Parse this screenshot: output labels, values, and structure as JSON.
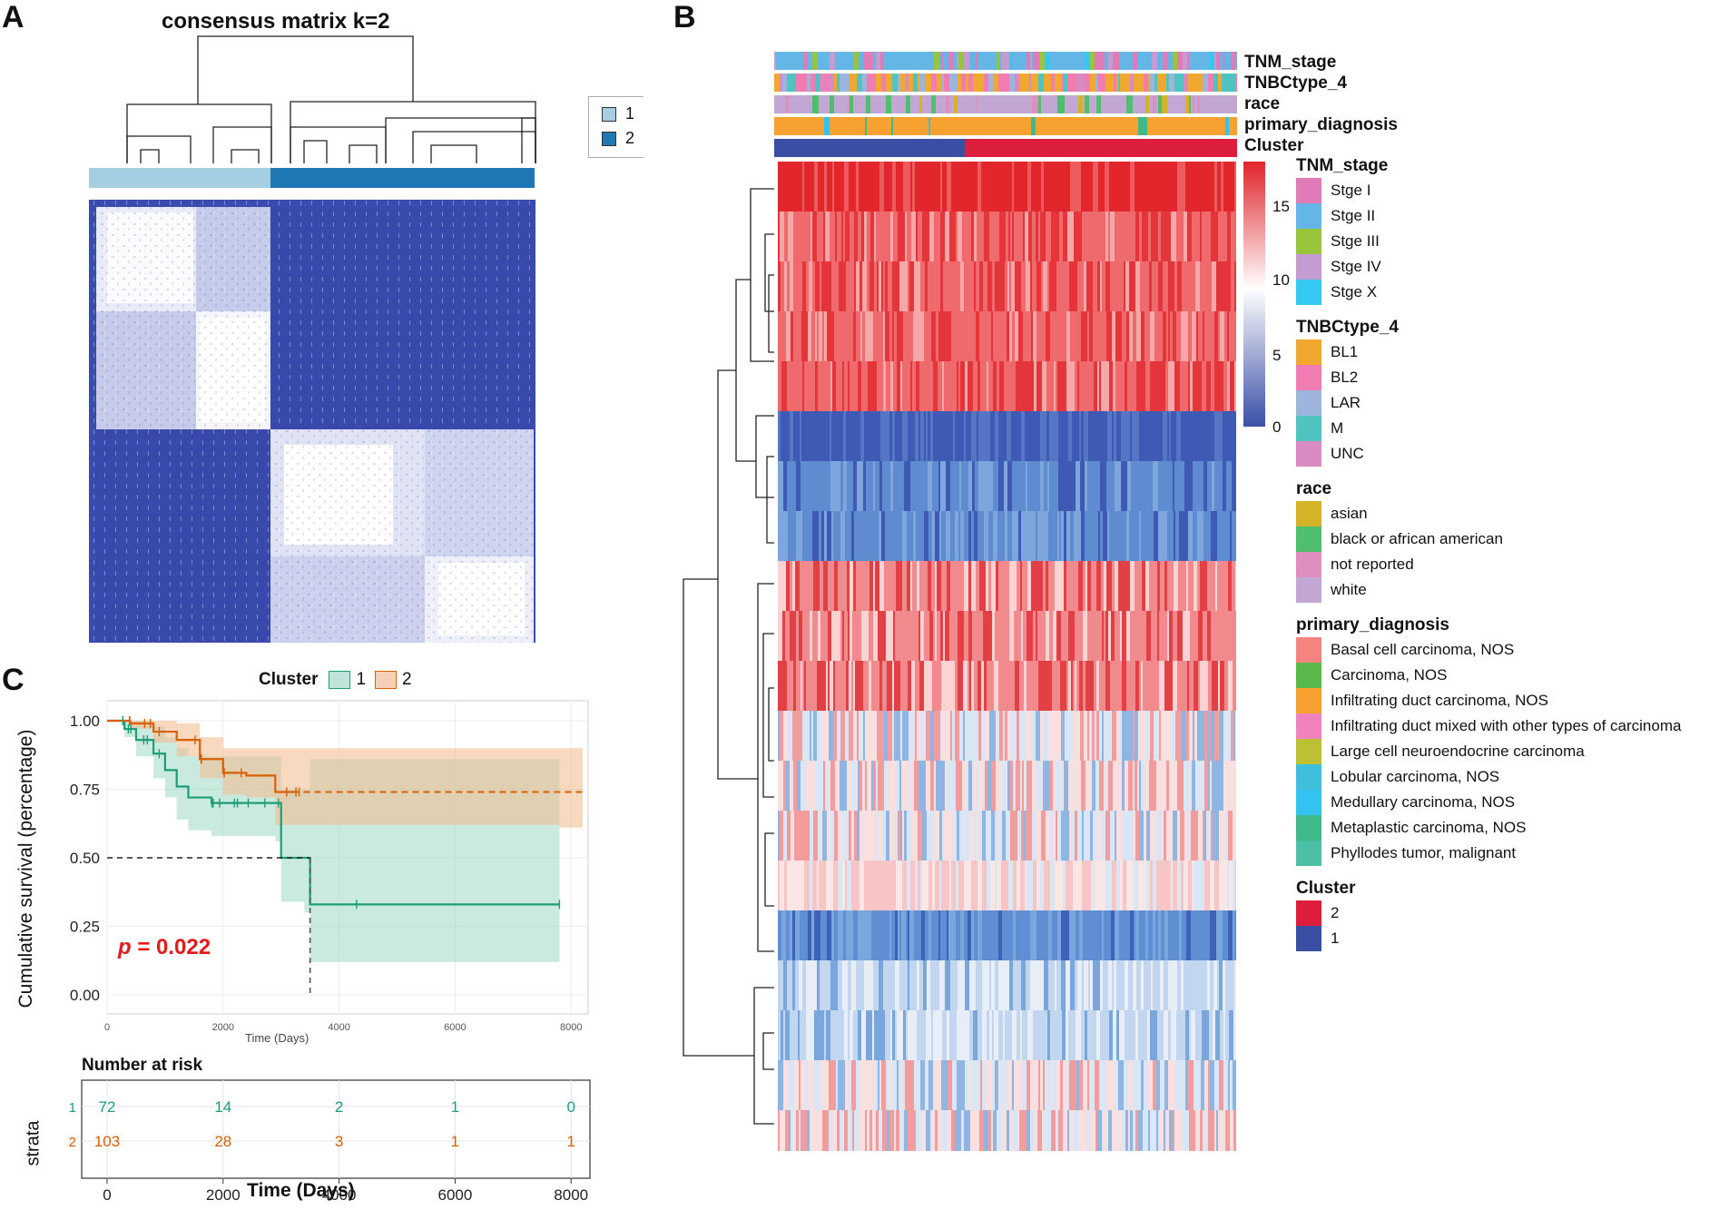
{
  "panels": {
    "a": {
      "letter": "A",
      "title": "consensus matrix k=2",
      "legend": [
        {
          "label": "1",
          "color": "#a6cee3"
        },
        {
          "label": "2",
          "color": "#1f78b4"
        }
      ]
    },
    "b": {
      "letter": "B",
      "annotation_rows": [
        "TNM_stage",
        "TNBCtype_4",
        "race",
        "primary_diagnosis",
        "Cluster"
      ],
      "color_scale": {
        "ticks": [
          "15",
          "10",
          "5",
          "0"
        ],
        "low": "#3a4fa6",
        "mid": "#ffffff",
        "high": "#e0242a"
      },
      "legends": [
        {
          "title": "TNM_stage",
          "items": [
            {
              "label": "Stge I",
              "color": "#e07bb8"
            },
            {
              "label": "Stge II",
              "color": "#63b6e6"
            },
            {
              "label": "Stge III",
              "color": "#98c53c"
            },
            {
              "label": "Stge IV",
              "color": "#c49cd1"
            },
            {
              "label": "Stge X",
              "color": "#35c8f0"
            }
          ]
        },
        {
          "title": "TNBCtype_4",
          "items": [
            {
              "label": "BL1",
              "color": "#f0a92e"
            },
            {
              "label": "BL2",
              "color": "#f17cb2"
            },
            {
              "label": "LAR",
              "color": "#9db4dd"
            },
            {
              "label": "M",
              "color": "#4ec3bf"
            },
            {
              "label": "UNC",
              "color": "#d98ac0"
            }
          ]
        },
        {
          "title": "race",
          "items": [
            {
              "label": "asian",
              "color": "#d4b328"
            },
            {
              "label": "black or african american",
              "color": "#4fbf6e"
            },
            {
              "label": "not reported",
              "color": "#df8fbf"
            },
            {
              "label": "white",
              "color": "#c2a6d4"
            }
          ]
        },
        {
          "title": "primary_diagnosis",
          "items": [
            {
              "label": "Basal cell carcinoma, NOS",
              "color": "#f48480"
            },
            {
              "label": "Carcinoma, NOS",
              "color": "#58b94a"
            },
            {
              "label": "Infiltrating duct carcinoma, NOS",
              "color": "#f7a131"
            },
            {
              "label": "Infiltrating duct mixed with other types of carcinoma",
              "color": "#f082bd"
            },
            {
              "label": "Large cell neuroendocrine carcinoma",
              "color": "#bcc034"
            },
            {
              "label": "Lobular carcinoma, NOS",
              "color": "#3fbfdc"
            },
            {
              "label": "Medullary carcinoma, NOS",
              "color": "#34c3f0"
            },
            {
              "label": "Metaplastic carcinoma, NOS",
              "color": "#3fb989"
            },
            {
              "label": "Phyllodes tumor, malignant",
              "color": "#4dbfa7"
            }
          ]
        },
        {
          "title": "Cluster",
          "items": [
            {
              "label": "2",
              "color": "#dc1e3c"
            },
            {
              "label": "1",
              "color": "#3a4ea4"
            }
          ]
        }
      ]
    },
    "c": {
      "letter": "C",
      "legend_title": "Cluster",
      "legend_items": [
        "1",
        "2"
      ],
      "p_value_prefix": "p",
      "p_value_text": "= 0.022",
      "risk_title": "Number at risk",
      "strata_label": "strata"
    }
  },
  "chart_data": [
    {
      "type": "line",
      "title": "",
      "xlabel": "Time (Days)",
      "ylabel": "Cumulative survival (percentage)",
      "xlim": [
        0,
        8000
      ],
      "ylim": [
        0,
        1
      ],
      "x_ticks": [
        "0",
        "2000",
        "4000",
        "6000",
        "8000"
      ],
      "y_ticks": [
        "0.00",
        "0.25",
        "0.50",
        "0.75",
        "1.00"
      ],
      "series": [
        {
          "name": "1",
          "color": "#1b9e77",
          "x": [
            0,
            300,
            500,
            800,
            1000,
            1200,
            1400,
            1800,
            2000,
            2400,
            2900,
            3000,
            3400,
            3500,
            7800
          ],
          "y": [
            1.0,
            0.97,
            0.93,
            0.88,
            0.82,
            0.76,
            0.72,
            0.7,
            0.7,
            0.7,
            0.7,
            0.5,
            0.5,
            0.33,
            0.33
          ],
          "ci_upper": [
            1.0,
            1.0,
            1.0,
            0.98,
            0.94,
            0.9,
            0.87,
            0.87,
            0.87,
            0.87,
            0.87,
            0.75,
            0.75,
            0.86,
            0.86
          ],
          "ci_lower": [
            1.0,
            0.94,
            0.87,
            0.79,
            0.72,
            0.64,
            0.6,
            0.58,
            0.58,
            0.58,
            0.56,
            0.34,
            0.3,
            0.12,
            0.12
          ]
        },
        {
          "name": "2",
          "color": "#d95f02",
          "x": [
            0,
            400,
            800,
            1200,
            1600,
            2000,
            2400,
            2900,
            3200,
            7800,
            8200
          ],
          "y": [
            1.0,
            0.99,
            0.96,
            0.93,
            0.86,
            0.81,
            0.8,
            0.74,
            0.74,
            0.74,
            0.74
          ],
          "ci_upper": [
            1.0,
            1.0,
            1.0,
            0.99,
            0.94,
            0.9,
            0.9,
            0.9,
            0.9,
            0.9,
            0.9
          ],
          "ci_lower": [
            1.0,
            0.97,
            0.92,
            0.87,
            0.79,
            0.73,
            0.72,
            0.62,
            0.62,
            0.61,
            0.61
          ]
        }
      ],
      "median_lines": [
        {
          "y": 0.5,
          "x": 3500
        }
      ]
    },
    {
      "type": "table",
      "title": "Number at risk",
      "xlabel": "Time (Days)",
      "ylabel": "strata",
      "time_points": [
        0,
        2000,
        4000,
        6000,
        8000
      ],
      "x_ticks": [
        "0",
        "2000",
        "4000",
        "6000",
        "8000"
      ],
      "rows": [
        {
          "strata": "1",
          "color": "#1b9e77",
          "values": [
            "72",
            "14",
            "2",
            "1",
            "0"
          ]
        },
        {
          "strata": "2",
          "color": "#d95f02",
          "values": [
            "103",
            "28",
            "3",
            "1",
            "1"
          ]
        }
      ]
    }
  ]
}
